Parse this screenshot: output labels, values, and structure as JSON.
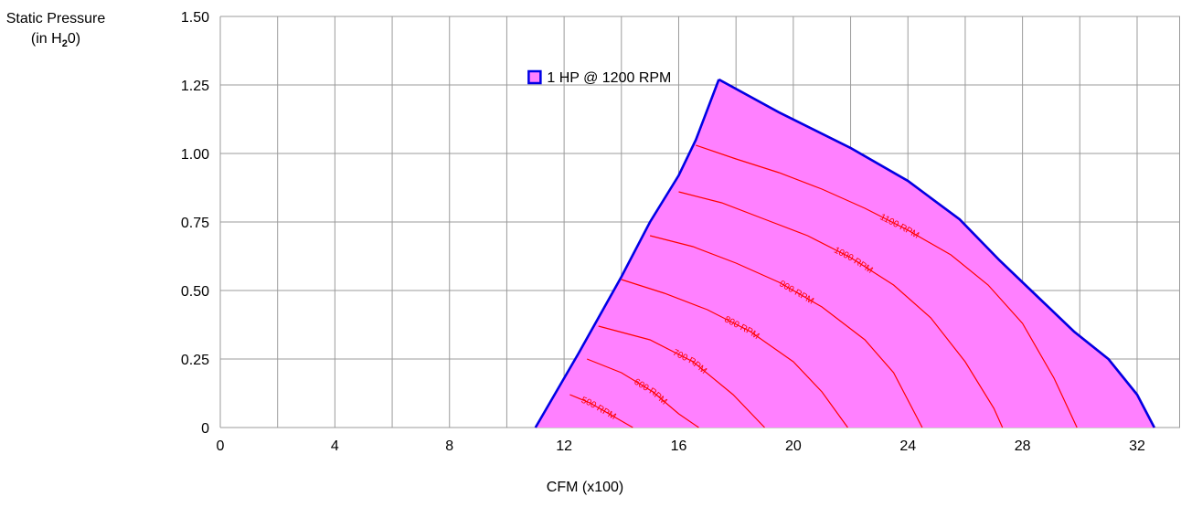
{
  "chart_data": {
    "type": "area",
    "xlabel": "CFM (x100)",
    "ylabel_line1": "Static Pressure",
    "ylabel_line2_pre": "(in H",
    "ylabel_line2_sub": "2",
    "ylabel_line2_post": "0)",
    "xlim": [
      0,
      33.5
    ],
    "ylim": [
      0,
      1.5
    ],
    "x_ticks": [
      0,
      4,
      8,
      12,
      16,
      20,
      24,
      28,
      32
    ],
    "x_tick_labels": [
      "0",
      "4",
      "8",
      "12",
      "16",
      "20",
      "24",
      "28",
      "32"
    ],
    "y_ticks": [
      0,
      0.25,
      0.5,
      0.75,
      1.0,
      1.25,
      1.5
    ],
    "y_tick_labels": [
      "0",
      "0.25",
      "0.50",
      "0.75",
      "1.00",
      "1.25",
      "1.50"
    ],
    "grid": true,
    "legend_position": "top-left",
    "colors": {
      "fill": "#ff80ff",
      "boundary": "#0000e6",
      "curves": "#ff0000"
    },
    "series": [
      {
        "name": "1 HP @ 1200 RPM",
        "boundary": [
          [
            11.0,
            0
          ],
          [
            12.5,
            0.27
          ],
          [
            14.0,
            0.55
          ],
          [
            15.0,
            0.75
          ],
          [
            16.0,
            0.92
          ],
          [
            16.6,
            1.05
          ],
          [
            17.4,
            1.27
          ],
          [
            19.5,
            1.15
          ],
          [
            22.0,
            1.02
          ],
          [
            24.0,
            0.9
          ],
          [
            25.8,
            0.76
          ],
          [
            27.2,
            0.61
          ],
          [
            28.6,
            0.47
          ],
          [
            29.8,
            0.35
          ],
          [
            31.0,
            0.25
          ],
          [
            32.0,
            0.12
          ],
          [
            32.6,
            0
          ]
        ]
      }
    ],
    "rpm_curves": [
      {
        "label": "500 RPM",
        "points": [
          [
            12.2,
            0.12
          ],
          [
            12.9,
            0.09
          ],
          [
            13.4,
            0.06
          ],
          [
            13.9,
            0.03
          ],
          [
            14.4,
            0
          ]
        ]
      },
      {
        "label": "600 RPM",
        "points": [
          [
            12.8,
            0.25
          ],
          [
            14.0,
            0.2
          ],
          [
            15.1,
            0.13
          ],
          [
            16.0,
            0.05
          ],
          [
            16.7,
            0
          ]
        ]
      },
      {
        "label": "700 RPM",
        "points": [
          [
            13.2,
            0.37
          ],
          [
            15.0,
            0.32
          ],
          [
            16.5,
            0.24
          ],
          [
            17.9,
            0.12
          ],
          [
            19.0,
            0
          ]
        ]
      },
      {
        "label": "800 RPM",
        "points": [
          [
            14.0,
            0.54
          ],
          [
            15.5,
            0.49
          ],
          [
            17.0,
            0.43
          ],
          [
            18.5,
            0.35
          ],
          [
            20.0,
            0.24
          ],
          [
            21.0,
            0.13
          ],
          [
            21.9,
            0
          ]
        ]
      },
      {
        "label": "900 RPM",
        "points": [
          [
            15.0,
            0.7
          ],
          [
            16.5,
            0.66
          ],
          [
            18.0,
            0.6
          ],
          [
            19.5,
            0.53
          ],
          [
            21.0,
            0.44
          ],
          [
            22.5,
            0.32
          ],
          [
            23.5,
            0.2
          ],
          [
            24.5,
            0
          ]
        ]
      },
      {
        "label": "1000 RPM",
        "points": [
          [
            16.0,
            0.86
          ],
          [
            17.5,
            0.82
          ],
          [
            19.0,
            0.76
          ],
          [
            20.5,
            0.7
          ],
          [
            22.0,
            0.62
          ],
          [
            23.5,
            0.52
          ],
          [
            24.8,
            0.4
          ],
          [
            26.0,
            0.24
          ],
          [
            27.0,
            0.07
          ],
          [
            27.3,
            0
          ]
        ]
      },
      {
        "label": "1100 RPM",
        "points": [
          [
            16.6,
            1.03
          ],
          [
            18.0,
            0.98
          ],
          [
            19.5,
            0.93
          ],
          [
            21.0,
            0.87
          ],
          [
            22.5,
            0.8
          ],
          [
            24.0,
            0.72
          ],
          [
            25.5,
            0.63
          ],
          [
            26.8,
            0.52
          ],
          [
            28.0,
            0.38
          ],
          [
            29.1,
            0.18
          ],
          [
            29.9,
            0
          ]
        ]
      }
    ]
  }
}
